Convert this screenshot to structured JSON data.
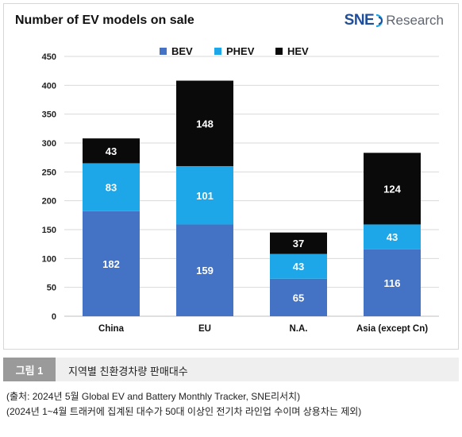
{
  "header": {
    "title": "Number of EV models on sale",
    "logo_sne": "SNE",
    "logo_research": "Research"
  },
  "colors": {
    "bev": "#4472c4",
    "phev": "#1ea7e8",
    "hev": "#0a0a0a"
  },
  "chart_data": {
    "type": "bar",
    "stacked": true,
    "title": "Number of EV models on sale",
    "categories": [
      "China",
      "EU",
      "N.A.",
      "Asia (except Cn)"
    ],
    "series": [
      {
        "name": "BEV",
        "values": [
          182,
          159,
          65,
          116
        ]
      },
      {
        "name": "PHEV",
        "values": [
          83,
          101,
          43,
          43
        ]
      },
      {
        "name": "HEV",
        "values": [
          43,
          148,
          37,
          124
        ]
      }
    ],
    "ylim": [
      0,
      450
    ],
    "yticks": [
      0,
      50,
      100,
      150,
      200,
      250,
      300,
      350,
      400,
      450
    ],
    "xlabel": "",
    "ylabel": "",
    "grid": true,
    "legend": "top-center"
  },
  "caption": {
    "label": "그림 1",
    "text": "지역별 친환경차량 판매대수"
  },
  "source": {
    "line1": "(출처: 2024년 5월 Global EV and Battery Monthly Tracker, SNE리서치)",
    "line2": "(2024년 1~4월 트래커에 집계된 대수가 50대 이상인 전기차 라인업 수이며 상용차는 제외)"
  }
}
